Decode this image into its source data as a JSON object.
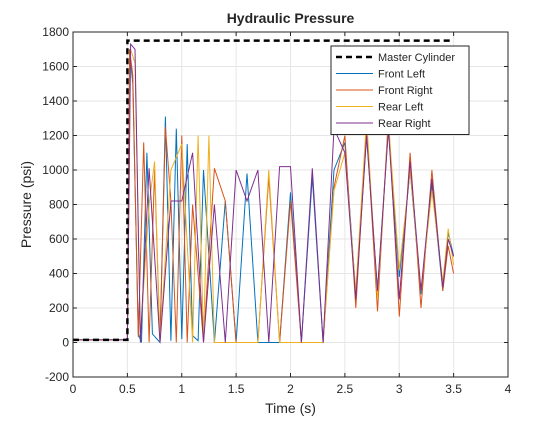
{
  "chart_data": {
    "type": "line",
    "title": "Hydraulic Pressure",
    "xlabel": "Time (s)",
    "ylabel": "Pressure (psi)",
    "xlim": [
      0,
      4
    ],
    "ylim": [
      -200,
      1800
    ],
    "xticks": [
      0,
      0.5,
      1,
      1.5,
      2,
      2.5,
      3,
      3.5,
      4
    ],
    "xtick_labels": [
      "0",
      "0.5",
      "1",
      "1.5",
      "2",
      "2.5",
      "3",
      "3.5",
      "4"
    ],
    "yticks": [
      -200,
      0,
      200,
      400,
      600,
      800,
      1000,
      1200,
      1400,
      1600,
      1800
    ],
    "ytick_labels": [
      "-200",
      "0",
      "200",
      "400",
      "600",
      "800",
      "1000",
      "1200",
      "1400",
      "1600",
      "1800"
    ],
    "grid": true,
    "legend_position": "top-right",
    "series": [
      {
        "name": "Master Cylinder",
        "color": "#000000",
        "style": "dashed",
        "x": [
          0,
          0.5,
          0.5,
          3.5
        ],
        "y": [
          15,
          15,
          1750,
          1750
        ]
      },
      {
        "name": "Front Left",
        "color": "#0072BD",
        "style": "solid",
        "x": [
          0,
          0.5,
          0.52,
          0.55,
          0.6,
          0.63,
          0.68,
          0.73,
          0.8,
          0.85,
          0.9,
          0.95,
          1.0,
          1.05,
          1.1,
          1.15,
          1.2,
          1.3,
          1.4,
          1.5,
          1.6,
          1.7,
          1.8,
          1.9,
          2.0,
          2.1,
          2.2,
          2.3,
          2.4,
          2.5,
          2.6,
          2.7,
          2.8,
          2.9,
          3.0,
          3.1,
          3.2,
          3.3,
          3.4,
          3.45,
          3.5
        ],
        "y": [
          15,
          15,
          1700,
          1500,
          50,
          0,
          1100,
          50,
          0,
          1310,
          10,
          1240,
          20,
          1150,
          40,
          10,
          1000,
          0,
          820,
          0,
          980,
          0,
          0,
          0,
          870,
          0,
          960,
          0,
          1000,
          1160,
          280,
          1200,
          300,
          1240,
          380,
          1000,
          280,
          920,
          300,
          640,
          500
        ]
      },
      {
        "name": "Front Right",
        "color": "#D95319",
        "style": "solid",
        "x": [
          0,
          0.5,
          0.52,
          0.55,
          0.6,
          0.65,
          0.7,
          0.75,
          0.8,
          0.85,
          0.9,
          0.95,
          1.0,
          1.05,
          1.1,
          1.2,
          1.3,
          1.4,
          1.5,
          1.6,
          1.7,
          1.8,
          1.9,
          2.0,
          2.1,
          2.2,
          2.3,
          2.4,
          2.5,
          2.6,
          2.7,
          2.8,
          2.9,
          3.0,
          3.1,
          3.2,
          3.3,
          3.4,
          3.45,
          3.5
        ],
        "y": [
          15,
          15,
          1700,
          1550,
          30,
          1160,
          0,
          1000,
          0,
          1250,
          820,
          0,
          1200,
          0,
          800,
          0,
          1010,
          820,
          0,
          0,
          0,
          960,
          0,
          820,
          0,
          0,
          0,
          900,
          1200,
          200,
          1250,
          180,
          1310,
          150,
          1100,
          200,
          1000,
          300,
          560,
          400
        ]
      },
      {
        "name": "Rear Left",
        "color": "#EDB120",
        "style": "solid",
        "x": [
          0,
          0.5,
          0.53,
          0.57,
          0.62,
          0.7,
          0.75,
          0.8,
          0.9,
          1.0,
          1.1,
          1.15,
          1.2,
          1.25,
          1.3,
          1.4,
          1.5,
          1.6,
          1.7,
          1.8,
          1.9,
          2.0,
          2.1,
          2.2,
          2.3,
          2.4,
          2.5,
          2.6,
          2.7,
          2.8,
          2.9,
          3.0,
          3.1,
          3.2,
          3.3,
          3.4,
          3.45,
          3.5
        ],
        "y": [
          15,
          15,
          1700,
          1620,
          40,
          800,
          1050,
          0,
          1000,
          1150,
          0,
          1200,
          10,
          1200,
          0,
          0,
          0,
          0,
          0,
          1000,
          0,
          0,
          0,
          0,
          0,
          880,
          1100,
          300,
          1300,
          250,
          1280,
          420,
          1000,
          300,
          880,
          350,
          660,
          450
        ]
      },
      {
        "name": "Rear Right",
        "color": "#7E2F8E",
        "style": "solid",
        "x": [
          0,
          0.5,
          0.53,
          0.57,
          0.62,
          0.7,
          0.8,
          0.9,
          1.0,
          1.1,
          1.2,
          1.3,
          1.4,
          1.5,
          1.6,
          1.7,
          1.8,
          1.9,
          2.0,
          2.1,
          2.2,
          2.3,
          2.4,
          2.5,
          2.6,
          2.7,
          2.8,
          2.9,
          3.0,
          3.1,
          3.2,
          3.3,
          3.4,
          3.45,
          3.5
        ],
        "y": [
          15,
          15,
          1730,
          1700,
          0,
          1010,
          0,
          820,
          820,
          1100,
          0,
          800,
          0,
          1000,
          820,
          1000,
          0,
          1020,
          1020,
          0,
          1010,
          0,
          1240,
          1100,
          250,
          1200,
          300,
          1240,
          250,
          1050,
          300,
          950,
          320,
          600,
          500
        ]
      }
    ]
  }
}
